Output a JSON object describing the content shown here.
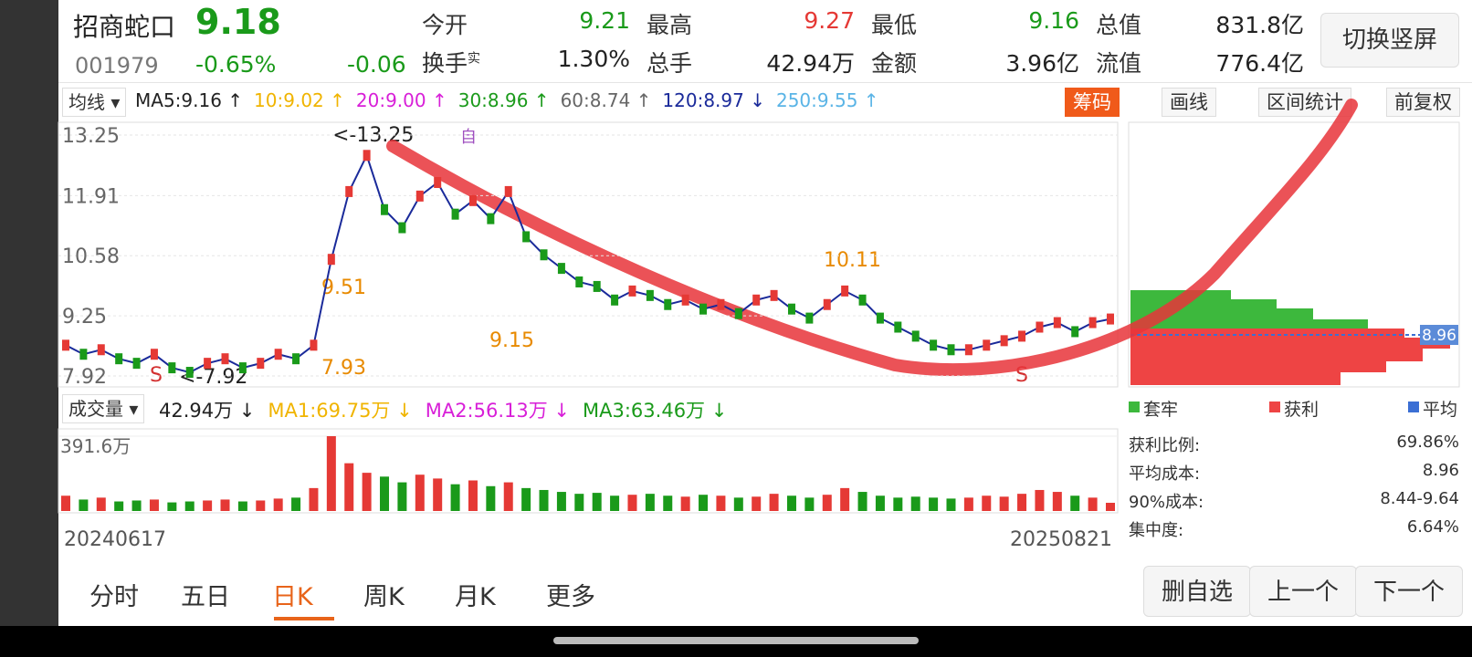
{
  "header": {
    "name": "招商蛇口",
    "price": "9.18",
    "code": "001979",
    "change_pct": "-0.65%",
    "change": "-0.06",
    "stats": [
      {
        "label": "今开",
        "value": "9.21"
      },
      {
        "label": "最高",
        "value": "9.27"
      },
      {
        "label": "最低",
        "value": "9.16"
      },
      {
        "label": "总值",
        "value": "831.8亿"
      },
      {
        "label": "换手",
        "sup": "实",
        "value": "1.30%"
      },
      {
        "label": "总手",
        "value": "42.94万"
      },
      {
        "label": "金额",
        "value": "3.96亿"
      },
      {
        "label": "流值",
        "value": "776.4亿"
      }
    ],
    "switch_button": "切换竖屏"
  },
  "toolbar": {
    "ma_selector": "均线",
    "ma_items": [
      {
        "text": "MA5:9.16 ↑",
        "color": "#222222"
      },
      {
        "text": "10:9.02 ↑",
        "color": "#f0b400"
      },
      {
        "text": "20:9.00 ↑",
        "color": "#d81fd8"
      },
      {
        "text": "30:8.96 ↑",
        "color": "#1a9a1a"
      },
      {
        "text": "60:8.74 ↑",
        "color": "#666666"
      },
      {
        "text": "120:8.97 ↓",
        "color": "#1a2a9a"
      },
      {
        "text": "250:9.55 ↑",
        "color": "#5ab4e6"
      }
    ],
    "buttons": [
      "筹码",
      "画线",
      "区间统计",
      "前复权"
    ]
  },
  "chart_data": {
    "type": "line",
    "ylim": [
      7.92,
      13.25
    ],
    "yticks": [
      {
        "value": 13.25,
        "label": "13.25"
      },
      {
        "value": 11.91,
        "label": "11.91"
      },
      {
        "value": 10.58,
        "label": "10.58"
      },
      {
        "value": 9.25,
        "label": "9.25"
      },
      {
        "value": 7.92,
        "label": "7.92"
      }
    ],
    "values": [
      8.6,
      8.4,
      8.5,
      8.3,
      8.2,
      8.4,
      8.1,
      8.0,
      8.2,
      8.3,
      8.1,
      8.2,
      8.4,
      8.3,
      8.6,
      10.5,
      12.0,
      12.8,
      11.6,
      11.2,
      11.9,
      12.2,
      11.5,
      11.8,
      11.4,
      12.0,
      11.0,
      10.6,
      10.3,
      10.0,
      9.9,
      9.6,
      9.8,
      9.7,
      9.5,
      9.6,
      9.4,
      9.5,
      9.3,
      9.6,
      9.7,
      9.4,
      9.2,
      9.5,
      9.8,
      9.6,
      9.2,
      9.0,
      8.8,
      8.6,
      8.5,
      8.5,
      8.6,
      8.7,
      8.8,
      9.0,
      9.1,
      8.9,
      9.1,
      9.18
    ],
    "up_color": "#e53935",
    "down_color": "#1a9a1a",
    "annotations": [
      "<-13.25",
      "<-7.92",
      "10.11",
      "9.15",
      "7.93",
      "9.51",
      "S",
      "S",
      "自"
    ],
    "grid": true
  },
  "volume": {
    "selector": "成交量",
    "items": [
      {
        "text": "42.94万 ↓",
        "color": "#222222"
      },
      {
        "text": "MA1:69.75万 ↓",
        "color": "#f0b400"
      },
      {
        "text": "MA2:56.13万 ↓",
        "color": "#d81fd8"
      },
      {
        "text": "MA3:63.46万 ↓",
        "color": "#1a9a1a"
      }
    ],
    "ylim": [
      0,
      391.6
    ],
    "yticks": [
      {
        "value": 391.6,
        "label": "391.6万"
      }
    ],
    "values": [
      80,
      60,
      70,
      50,
      55,
      60,
      45,
      50,
      55,
      60,
      50,
      55,
      65,
      70,
      120,
      391.6,
      250,
      200,
      180,
      150,
      190,
      170,
      140,
      160,
      130,
      150,
      120,
      110,
      100,
      90,
      95,
      80,
      85,
      90,
      80,
      75,
      85,
      80,
      70,
      75,
      90,
      80,
      70,
      85,
      120,
      100,
      80,
      70,
      75,
      70,
      65,
      70,
      80,
      75,
      90,
      110,
      100,
      80,
      70,
      42.94
    ],
    "dates": [
      "20240617",
      "20250821"
    ]
  },
  "chips": {
    "avg_label": "8.96",
    "legend": [
      "套牢",
      "获利",
      "平均"
    ],
    "stats": [
      {
        "label": "获利比例:",
        "value": "69.86%"
      },
      {
        "label": "平均成本:",
        "value": "8.96"
      },
      {
        "label": "90%成本:",
        "value": "8.44-9.64"
      },
      {
        "label": "集中度:",
        "value": "6.64%"
      }
    ]
  },
  "tabs": [
    "分时",
    "五日",
    "日K",
    "周K",
    "月K",
    "更多"
  ],
  "actions": [
    "删自选",
    "上一个",
    "下一个"
  ]
}
